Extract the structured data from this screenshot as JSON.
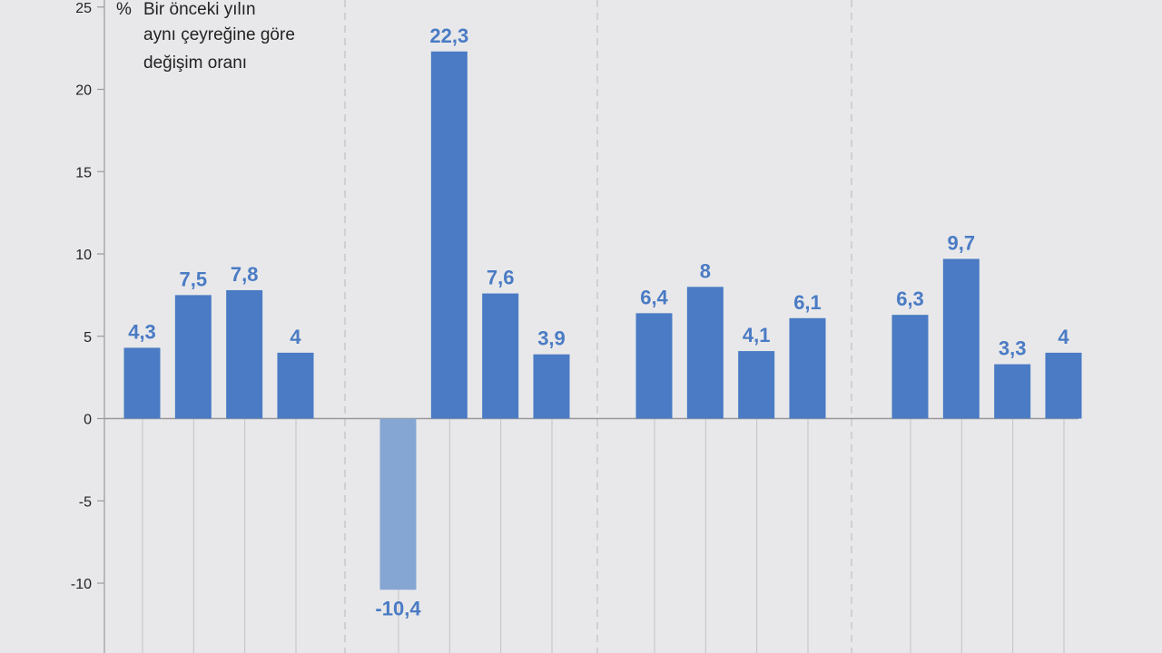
{
  "chart_data": {
    "type": "bar",
    "unit": "%",
    "annotation": [
      "Bir önceki yılın",
      "aynı çeyreğine göre",
      "değişim oranı"
    ],
    "values": [
      4.3,
      7.5,
      7.8,
      4,
      -10.4,
      22.3,
      7.6,
      3.9,
      6.4,
      8,
      4.1,
      6.1,
      6.3,
      9.7,
      3.3,
      4
    ],
    "value_labels": [
      "4,3",
      "7,5",
      "7,8",
      "4",
      "-10,4",
      "22,3",
      "7,6",
      "3,9",
      "6,4",
      "8",
      "4,1",
      "6,1",
      "6,3",
      "9,7",
      "3,3",
      "4"
    ],
    "y_ticks": [
      25,
      20,
      15,
      10,
      5,
      0,
      -5,
      -10
    ],
    "ylim": [
      -14,
      25
    ],
    "groups": 4,
    "bars_per_group": 4,
    "colors": {
      "bar": "#4a7bc4",
      "bar_negative": "#85a6d3",
      "label": "#4a7bc4",
      "grid": "#c4c4c8",
      "axis": "#999999"
    }
  }
}
